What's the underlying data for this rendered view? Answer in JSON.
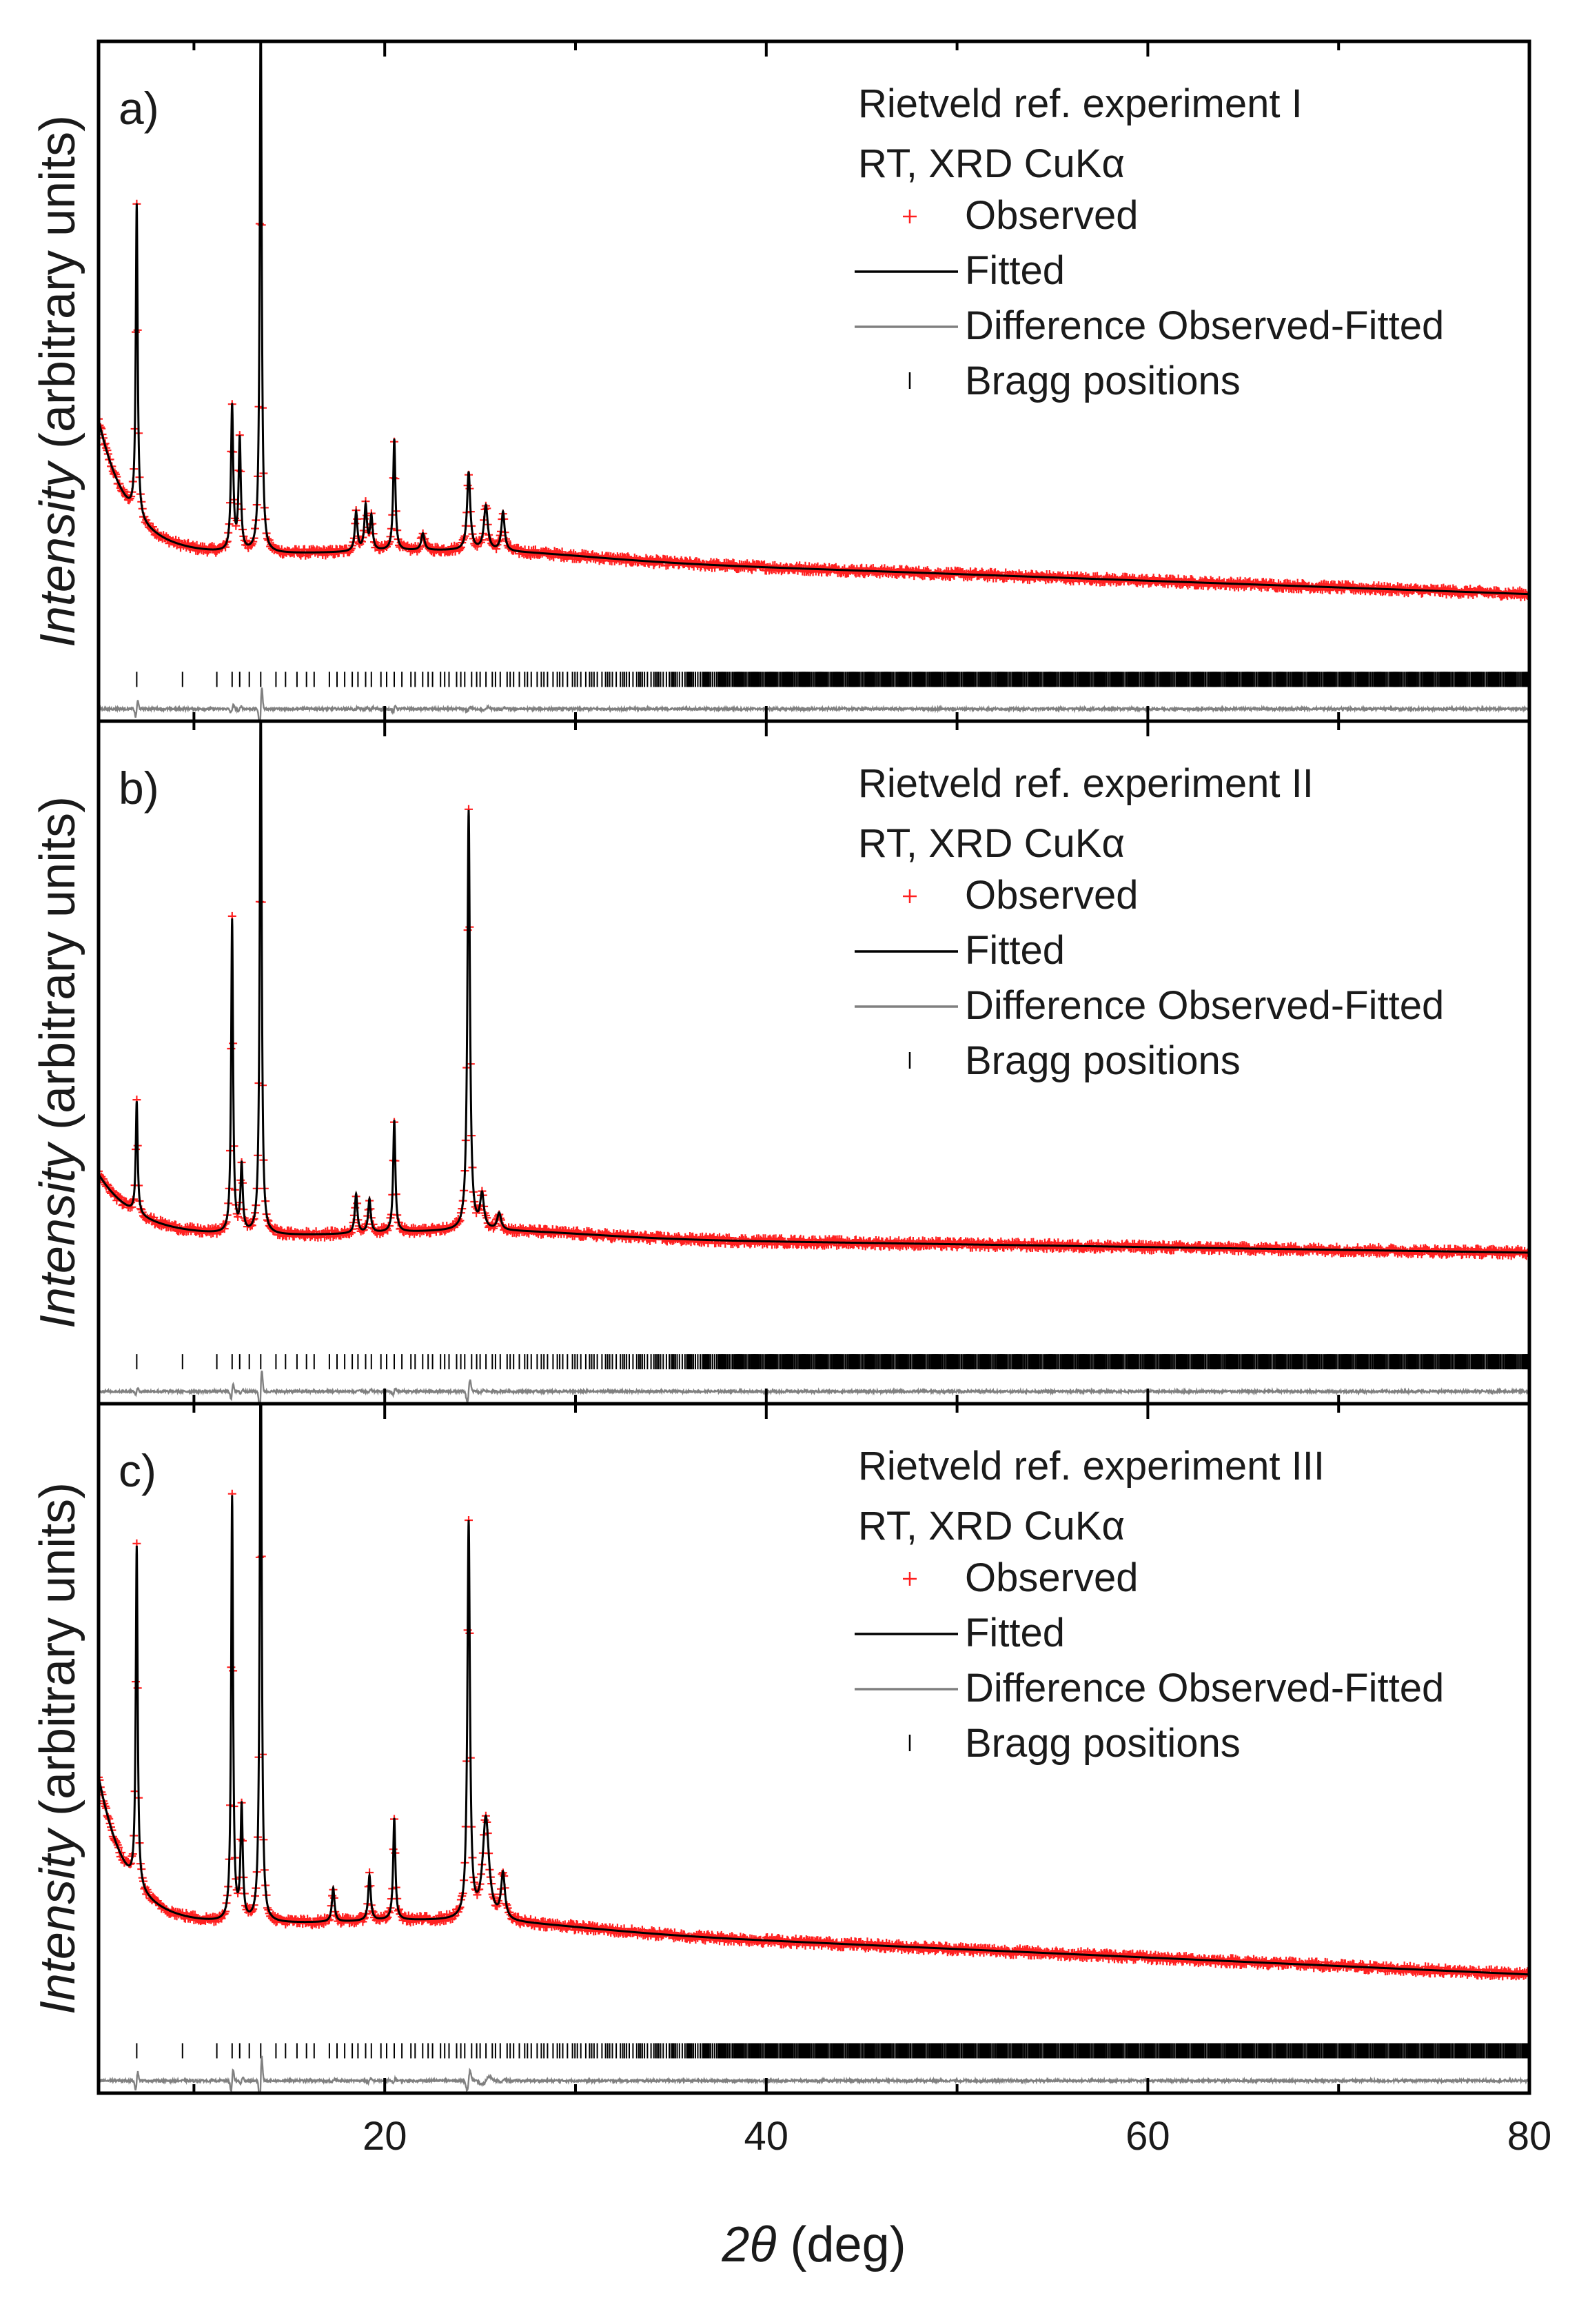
{
  "chart_data": {
    "type": "line",
    "x_axis": {
      "label_symbol": "2θ",
      "label_unit": "(deg)",
      "ticks": [
        20,
        40,
        60,
        80
      ],
      "xlim": [
        5,
        80
      ]
    },
    "y_axis": {
      "label_italic": "Intensity",
      "label_rest": " (arbitrary units)",
      "ylim": [
        -0.14,
        1.08
      ],
      "ticks_shown": false
    },
    "legend_entries": {
      "observed": "Observed",
      "fitted": "Fitted",
      "difference": "Difference Observed-Fitted",
      "bragg": "Bragg positions"
    },
    "colors": {
      "observed": "#ff2020",
      "fitted": "#000000",
      "difference": "#808080",
      "bragg": "#000000",
      "frame": "#000000"
    },
    "panels": [
      {
        "panel_label": "a)",
        "title": "Rietveld ref. experiment I",
        "subtitle": "RT, XRD CuKα",
        "background": {
          "start": 0.4,
          "decay": 0.26,
          "tau": 1.6,
          "plateau": 0.16,
          "slope": 0.0012
        },
        "peaks": [
          {
            "x": 7.0,
            "height": 0.56,
            "width": 0.06
          },
          {
            "x": 12.0,
            "height": 0.26,
            "width": 0.07
          },
          {
            "x": 12.4,
            "height": 0.2,
            "width": 0.07
          },
          {
            "x": 13.5,
            "height": 1.0,
            "width": 0.06
          },
          {
            "x": 18.5,
            "height": 0.07,
            "width": 0.08
          },
          {
            "x": 19.0,
            "height": 0.08,
            "width": 0.08
          },
          {
            "x": 19.3,
            "height": 0.06,
            "width": 0.08
          },
          {
            "x": 20.5,
            "height": 0.2,
            "width": 0.07
          },
          {
            "x": 22.0,
            "height": 0.03,
            "width": 0.1
          },
          {
            "x": 24.4,
            "height": 0.14,
            "width": 0.1
          },
          {
            "x": 25.3,
            "height": 0.08,
            "width": 0.12
          },
          {
            "x": 26.2,
            "height": 0.07,
            "width": 0.1
          }
        ]
      },
      {
        "panel_label": "b)",
        "title": "Rietveld ref. experiment II",
        "subtitle": "RT, XRD CuKα",
        "background": {
          "start": 0.27,
          "decay": 0.1,
          "tau": 2.0,
          "plateau": 0.16,
          "slope": 0.0005
        },
        "peaks": [
          {
            "x": 7.0,
            "height": 0.2,
            "width": 0.06
          },
          {
            "x": 12.0,
            "height": 0.56,
            "width": 0.06
          },
          {
            "x": 12.5,
            "height": 0.12,
            "width": 0.07
          },
          {
            "x": 13.5,
            "height": 1.0,
            "width": 0.06
          },
          {
            "x": 18.5,
            "height": 0.07,
            "width": 0.08
          },
          {
            "x": 19.2,
            "height": 0.06,
            "width": 0.08
          },
          {
            "x": 20.5,
            "height": 0.2,
            "width": 0.07
          },
          {
            "x": 24.4,
            "height": 0.75,
            "width": 0.08
          },
          {
            "x": 25.1,
            "height": 0.06,
            "width": 0.12
          },
          {
            "x": 26.0,
            "height": 0.03,
            "width": 0.12
          }
        ]
      },
      {
        "panel_label": "c)",
        "title": "Rietveld ref. experiment III",
        "subtitle": "RT, XRD CuKα",
        "background": {
          "start": 0.42,
          "decay": 0.28,
          "tau": 1.5,
          "plateau": 0.16,
          "slope": 0.0015
        },
        "peaks": [
          {
            "x": 7.0,
            "height": 0.6,
            "width": 0.06
          },
          {
            "x": 12.0,
            "height": 0.75,
            "width": 0.06
          },
          {
            "x": 12.5,
            "height": 0.2,
            "width": 0.07
          },
          {
            "x": 13.5,
            "height": 1.1,
            "width": 0.06
          },
          {
            "x": 17.3,
            "height": 0.06,
            "width": 0.08
          },
          {
            "x": 19.2,
            "height": 0.08,
            "width": 0.08
          },
          {
            "x": 20.5,
            "height": 0.18,
            "width": 0.07
          },
          {
            "x": 24.4,
            "height": 0.7,
            "width": 0.08
          },
          {
            "x": 25.3,
            "height": 0.18,
            "width": 0.2
          },
          {
            "x": 26.2,
            "height": 0.08,
            "width": 0.12
          }
        ]
      }
    ]
  }
}
